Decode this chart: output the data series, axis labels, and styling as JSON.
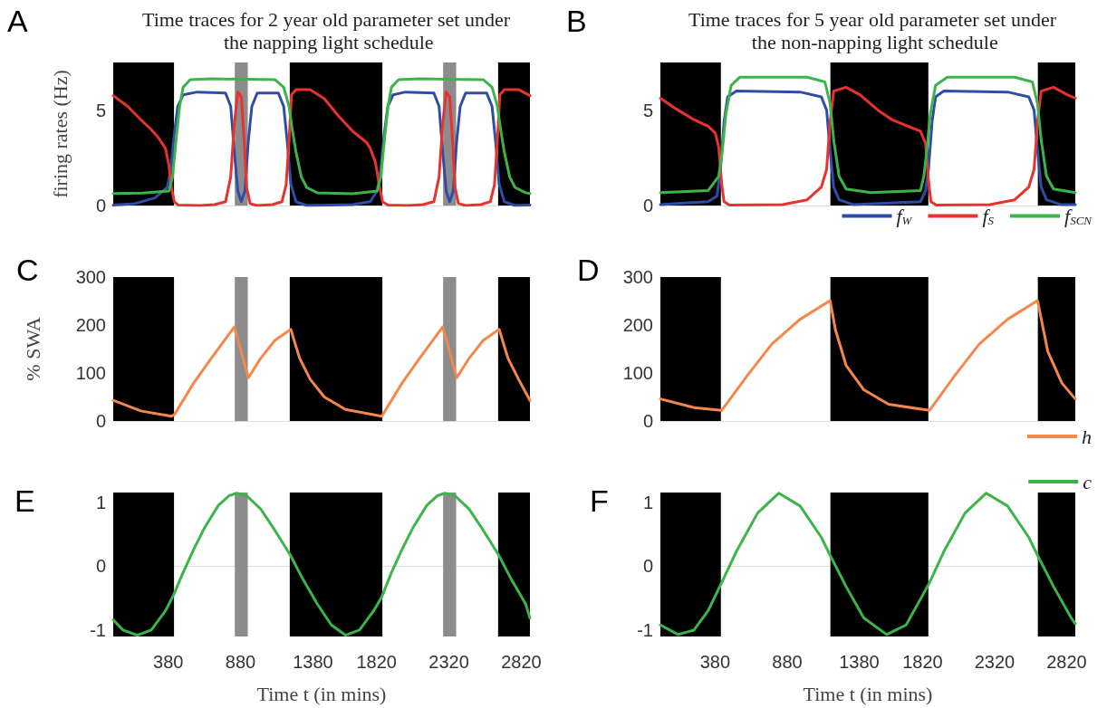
{
  "chart_data": [
    {
      "type": "line",
      "title": "Time traces for 2 year old parameter set under the napping light schedule",
      "ylabel": "firing rates (Hz)",
      "annotations": [
        "A"
      ],
      "xlim": [
        0,
        2880
      ],
      "ylim": [
        0,
        7.5
      ],
      "yticks": [
        0,
        5
      ],
      "tick_labels": "y",
      "marker": "none",
      "series": [
        {
          "color": "#2f4da6",
          "x": [
            0,
            150,
            288,
            373,
            398,
            422,
            446,
            483,
            580,
            776,
            812,
            837,
            861,
            885,
            910,
            934,
            958,
            995,
            1141,
            1178,
            1202,
            1227,
            1263,
            1337,
            1500,
            1654,
            1776,
            1824,
            1849,
            1873,
            1898,
            1934,
            2020,
            2216,
            2252,
            2277,
            2301,
            2325,
            2350,
            2374,
            2398,
            2435,
            2581,
            2618,
            2642,
            2667,
            2703,
            2777,
            2880
          ],
          "values": [
            0.02,
            0.1,
            0.4,
            0.95,
            1.9,
            3.75,
            5.2,
            5.8,
            5.95,
            5.9,
            5.2,
            2.8,
            0.76,
            0.2,
            0.76,
            3.4,
            5.2,
            5.9,
            5.9,
            5.2,
            3.4,
            1.14,
            0.2,
            0,
            0.02,
            0.05,
            0.2,
            0.76,
            1.9,
            3.75,
            5.2,
            5.8,
            5.95,
            5.9,
            5.2,
            2.8,
            0.76,
            0.2,
            0.76,
            3.4,
            5.2,
            5.9,
            5.9,
            5.2,
            3.4,
            1.14,
            0.2,
            0,
            0.02
          ]
        },
        {
          "color": "#e8322e",
          "x": [
            0,
            100,
            190,
            260,
            312,
            361,
            385,
            402,
            422,
            450,
            600,
            700,
            776,
            812,
            837,
            861,
            885,
            905,
            922,
            946,
            995,
            1100,
            1166,
            1195,
            1215,
            1232,
            1263,
            1361,
            1459,
            1556,
            1654,
            1752,
            1776,
            1812,
            1837,
            1861,
            1898,
            2040,
            2140,
            2216,
            2252,
            2277,
            2301,
            2325,
            2345,
            2362,
            2386,
            2435,
            2540,
            2606,
            2635,
            2655,
            2672,
            2703,
            2801,
            2880
          ],
          "values": [
            5.76,
            5.2,
            4.5,
            4.0,
            3.56,
            3.0,
            2.1,
            0.95,
            0.2,
            0.02,
            0,
            0.05,
            0.2,
            1.5,
            4.3,
            5.95,
            5.7,
            3.4,
            0.95,
            0.1,
            0,
            0.05,
            0.2,
            1.1,
            3.4,
            5.8,
            6.08,
            6.08,
            5.6,
            4.7,
            3.9,
            3.3,
            3.0,
            2.26,
            1.14,
            0.2,
            0.02,
            0,
            0.05,
            0.2,
            1.5,
            4.3,
            5.95,
            5.7,
            3.4,
            0.95,
            0.1,
            0,
            0.05,
            0.2,
            1.1,
            3.4,
            5.8,
            6.08,
            6.08,
            5.76
          ]
        },
        {
          "color": "#3cb44a",
          "x": [
            0,
            200,
            385,
            410,
            434,
            459,
            483,
            532,
            678,
            1117,
            1178,
            1215,
            1239,
            1263,
            1300,
            1337,
            1410,
            1654,
            1824,
            1850,
            1874,
            1899,
            1923,
            1972,
            2118,
            2557,
            2618,
            2655,
            2679,
            2703,
            2740,
            2777,
            2850,
            2880
          ],
          "values": [
            0.63,
            0.65,
            0.76,
            1.5,
            3.4,
            5.2,
            6.2,
            6.6,
            6.64,
            6.6,
            6.2,
            5.2,
            3.9,
            2.8,
            1.5,
            0.95,
            0.67,
            0.62,
            0.76,
            1.5,
            3.4,
            5.2,
            6.2,
            6.6,
            6.64,
            6.6,
            6.2,
            5.2,
            3.9,
            2.8,
            1.5,
            0.95,
            0.67,
            0.63
          ]
        }
      ],
      "bands": [
        {
          "axis": "x",
          "from": 0,
          "to": 420,
          "color": "#000000"
        },
        {
          "axis": "x",
          "from": 1220,
          "to": 1860,
          "color": "#000000"
        },
        {
          "axis": "x",
          "from": 2660,
          "to": 2880,
          "color": "#000000"
        },
        {
          "axis": "x",
          "from": 840,
          "to": 930,
          "color": "#8c8c8c"
        },
        {
          "axis": "x",
          "from": 2280,
          "to": 2370,
          "color": "#8c8c8c"
        }
      ]
    },
    {
      "type": "line",
      "title": "Time traces for 5 year old parameter set under the non-napping light schedule",
      "annotations": [
        "B"
      ],
      "xlim": [
        0,
        2880
      ],
      "ylim": [
        0,
        7.5
      ],
      "yticks": [
        0,
        5
      ],
      "tick_labels": "y",
      "marker": "none",
      "legend": "bottom right",
      "series": [
        {
          "name": "f$_{W}$",
          "color": "#2f4da6",
          "x": [
            0,
            331,
            393,
            417,
            442,
            467,
            528,
            970,
            1117,
            1154,
            1178,
            1203,
            1240,
            1338,
            1805,
            1841,
            1861,
            1886,
            1910,
            1968,
            2410,
            2557,
            2594,
            2618,
            2643,
            2680,
            2778,
            2880
          ],
          "values": [
            0.05,
            0.2,
            0.5,
            1.9,
            4.4,
            5.7,
            6.0,
            5.95,
            5.7,
            5.0,
            2.87,
            0.97,
            0.3,
            0.05,
            0.2,
            0.78,
            1.9,
            4.4,
            5.7,
            6.0,
            5.95,
            5.7,
            5.0,
            2.87,
            0.97,
            0.3,
            0.05,
            0.05
          ]
        },
        {
          "name": "f$_{S}$",
          "color": "#e8322e",
          "x": [
            0,
            110,
            233,
            331,
            381,
            405,
            425,
            442,
            479,
            847,
            1019,
            1117,
            1154,
            1178,
            1203,
            1289,
            1387,
            1510,
            1608,
            1706,
            1805,
            1841,
            1858,
            1878,
            1915,
            2287,
            2459,
            2557,
            2594,
            2618,
            2643,
            2729,
            2827,
            2880
          ],
          "values": [
            5.63,
            5.06,
            4.5,
            4.16,
            3.8,
            3.06,
            1.16,
            0.2,
            0.02,
            0.05,
            0.3,
            0.97,
            1.9,
            4.4,
            6.0,
            6.2,
            5.8,
            5.0,
            4.5,
            4.2,
            3.9,
            3.25,
            1.54,
            0.2,
            0.02,
            0.05,
            0.3,
            0.97,
            1.9,
            4.4,
            6.0,
            6.2,
            5.8,
            5.63
          ]
        },
        {
          "name": "f$_{SCN}$",
          "color": "#3cb44a",
          "x": [
            0,
            331,
            405,
            430,
            454,
            491,
            552,
            1019,
            1142,
            1178,
            1203,
            1240,
            1289,
            1461,
            1805,
            1829,
            1849,
            1873,
            1910,
            1992,
            2459,
            2582,
            2618,
            2643,
            2680,
            2729,
            2880
          ],
          "values": [
            0.68,
            0.78,
            1.54,
            2.87,
            4.77,
            6.3,
            6.73,
            6.73,
            6.48,
            5.34,
            3.44,
            1.54,
            0.87,
            0.68,
            0.78,
            1.54,
            2.87,
            4.77,
            6.3,
            6.73,
            6.73,
            6.48,
            5.34,
            3.44,
            1.54,
            0.87,
            0.68
          ]
        }
      ],
      "bands": [
        {
          "axis": "x",
          "from": 0,
          "to": 420,
          "color": "#000000"
        },
        {
          "axis": "x",
          "from": 1180,
          "to": 1860,
          "color": "#000000"
        },
        {
          "axis": "x",
          "from": 2620,
          "to": 2880,
          "color": "#000000"
        }
      ]
    },
    {
      "type": "line",
      "ylabel": "% SWA",
      "annotations": [
        "C"
      ],
      "xlim": [
        0,
        2880
      ],
      "ylim": [
        0,
        300
      ],
      "yticks": [
        0,
        100,
        200,
        300
      ],
      "tick_labels": "y",
      "marker": "none",
      "series": [
        {
          "color": "#f5874a",
          "x": [
            0,
            190,
            402,
            422,
            556,
            678,
            776,
            837,
            934,
            1020,
            1117,
            1227,
            1288,
            1361,
            1459,
            1605,
            1856,
            1996,
            2118,
            2216,
            2277,
            2374,
            2460,
            2557,
            2667,
            2728,
            2801,
            2880
          ],
          "values": [
            43,
            21,
            10,
            13,
            79,
            131,
            171,
            196,
            90,
            131,
            168,
            191,
            131,
            87,
            50,
            24,
            10,
            79,
            131,
            171,
            196,
            90,
            131,
            168,
            191,
            131,
            87,
            43
          ]
        }
      ],
      "bands": [
        {
          "axis": "x",
          "from": 0,
          "to": 420,
          "color": "#000000"
        },
        {
          "axis": "x",
          "from": 1220,
          "to": 1860,
          "color": "#000000"
        },
        {
          "axis": "x",
          "from": 2660,
          "to": 2880,
          "color": "#000000"
        },
        {
          "axis": "x",
          "from": 840,
          "to": 930,
          "color": "#8c8c8c"
        },
        {
          "axis": "x",
          "from": 2280,
          "to": 2370,
          "color": "#8c8c8c"
        }
      ]
    },
    {
      "type": "line",
      "annotations": [
        "D"
      ],
      "xlim": [
        0,
        2880
      ],
      "ylim": [
        0,
        300
      ],
      "yticks": [
        0,
        100,
        200,
        300
      ],
      "tick_labels": "y",
      "marker": "none",
      "legend": "bottom right",
      "series": [
        {
          "name": "h",
          "color": "#f5874a",
          "x": [
            0,
            233,
            425,
            602,
            773,
            970,
            1178,
            1215,
            1289,
            1412,
            1584,
            1868,
            2042,
            2213,
            2410,
            2618,
            2689,
            2787,
            2880
          ],
          "values": [
            46,
            28,
            22,
            94,
            160,
            212,
            251,
            190,
            116,
            65,
            35,
            22,
            94,
            160,
            212,
            251,
            145,
            79,
            46
          ]
        }
      ],
      "bands": [
        {
          "axis": "x",
          "from": 0,
          "to": 420,
          "color": "#000000"
        },
        {
          "axis": "x",
          "from": 1180,
          "to": 1860,
          "color": "#000000"
        },
        {
          "axis": "x",
          "from": 2620,
          "to": 2880,
          "color": "#000000"
        }
      ]
    },
    {
      "type": "line",
      "xlabel": "Time t (in mins)",
      "annotations": [
        "E"
      ],
      "xlim": [
        0,
        2880
      ],
      "xticks": [
        380,
        880,
        1380,
        1820,
        2320,
        2820
      ],
      "ylim": [
        -1.1,
        1.15
      ],
      "yticks": [
        -1,
        0,
        1
      ],
      "marker": "none",
      "series": [
        {
          "color": "#3cb44a",
          "x": [
            0,
            68,
            166,
            263,
            361,
            417,
            483,
            556,
            629,
            727,
            800,
            853,
            922,
            1020,
            1117,
            1222,
            1312,
            1410,
            1507,
            1605,
            1702,
            1800,
            1856,
            1923,
            1996,
            2069,
            2167,
            2240,
            2293,
            2362,
            2460,
            2557,
            2662,
            2752,
            2850,
            2880
          ],
          "values": [
            -0.84,
            -1.0,
            -1.08,
            -1.0,
            -0.7,
            -0.45,
            -0.1,
            0.26,
            0.59,
            0.95,
            1.1,
            1.14,
            1.1,
            0.89,
            0.56,
            0.18,
            -0.21,
            -0.59,
            -0.92,
            -1.08,
            -1.0,
            -0.7,
            -0.48,
            -0.1,
            0.26,
            0.59,
            0.95,
            1.1,
            1.14,
            1.1,
            0.89,
            0.56,
            0.18,
            -0.21,
            -0.59,
            -0.81
          ]
        }
      ],
      "bands": [
        {
          "axis": "x",
          "from": 0,
          "to": 420,
          "color": "#000000"
        },
        {
          "axis": "x",
          "from": 1220,
          "to": 1860,
          "color": "#000000"
        },
        {
          "axis": "x",
          "from": 2660,
          "to": 2880,
          "color": "#000000"
        },
        {
          "axis": "x",
          "from": 840,
          "to": 930,
          "color": "#8c8c8c"
        },
        {
          "axis": "x",
          "from": 2280,
          "to": 2370,
          "color": "#8c8c8c"
        }
      ]
    },
    {
      "type": "line",
      "xlabel": "Time t (in mins)",
      "annotations": [
        "F"
      ],
      "xlim": [
        0,
        2880
      ],
      "xticks": [
        380,
        880,
        1380,
        1820,
        2320,
        2820
      ],
      "ylim": [
        -1.1,
        1.15
      ],
      "yticks": [
        -1,
        0,
        1
      ],
      "marker": "none",
      "legend": "top right",
      "series": [
        {
          "name": "c",
          "color": "#3cb44a",
          "x": [
            0,
            123,
            233,
            331,
            425,
            528,
            675,
            822,
            970,
            1117,
            1178,
            1289,
            1412,
            1571,
            1706,
            1868,
            1968,
            2115,
            2262,
            2410,
            2557,
            2618,
            2729,
            2852,
            2880
          ],
          "values": [
            -0.92,
            -1.07,
            -1.0,
            -0.7,
            -0.26,
            0.23,
            0.83,
            1.14,
            0.94,
            0.45,
            0.17,
            -0.32,
            -0.81,
            -1.07,
            -0.92,
            -0.26,
            0.23,
            0.83,
            1.14,
            0.94,
            0.45,
            0.17,
            -0.32,
            -0.81,
            -0.9
          ]
        }
      ],
      "bands": [
        {
          "axis": "x",
          "from": 0,
          "to": 420,
          "color": "#000000"
        },
        {
          "axis": "x",
          "from": 1180,
          "to": 1860,
          "color": "#000000"
        },
        {
          "axis": "x",
          "from": 2620,
          "to": 2880,
          "color": "#000000"
        }
      ]
    }
  ]
}
